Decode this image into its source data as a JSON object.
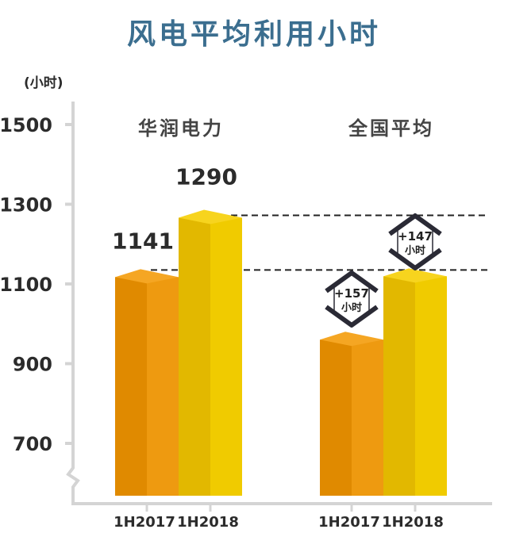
{
  "chart_data": {
    "type": "bar",
    "title": "风电平均利用小时",
    "ylabel": "(小时)",
    "yticks": [
      700,
      900,
      1100,
      1300,
      1500
    ],
    "ylim": [
      600,
      1550
    ],
    "axis_break": true,
    "grid": false,
    "groups": [
      {
        "name": "华润电力",
        "categories": [
          "1H2017",
          "1H2018"
        ],
        "values": [
          1141,
          1290
        ],
        "labels": [
          "1141",
          "1290"
        ]
      },
      {
        "name": "全国平均",
        "categories": [
          "1H2017",
          "1H2018"
        ],
        "values": [
          984,
          1143
        ],
        "labels": [
          "",
          ""
        ]
      }
    ],
    "annotations": [
      {
        "text": "+157",
        "unit": "小时"
      },
      {
        "text": "+147",
        "unit": "小时"
      }
    ],
    "colors": {
      "orange_front": "#e08a00",
      "orange_side": "#ee9a10",
      "orange_top": "#f5a623",
      "yellow_front": "#e2b800",
      "yellow_side": "#f0cb00",
      "yellow_top": "#f7d41e",
      "title": "#3b6e8f",
      "axis": "#d4d4d4",
      "text": "#2b2b2b"
    }
  }
}
